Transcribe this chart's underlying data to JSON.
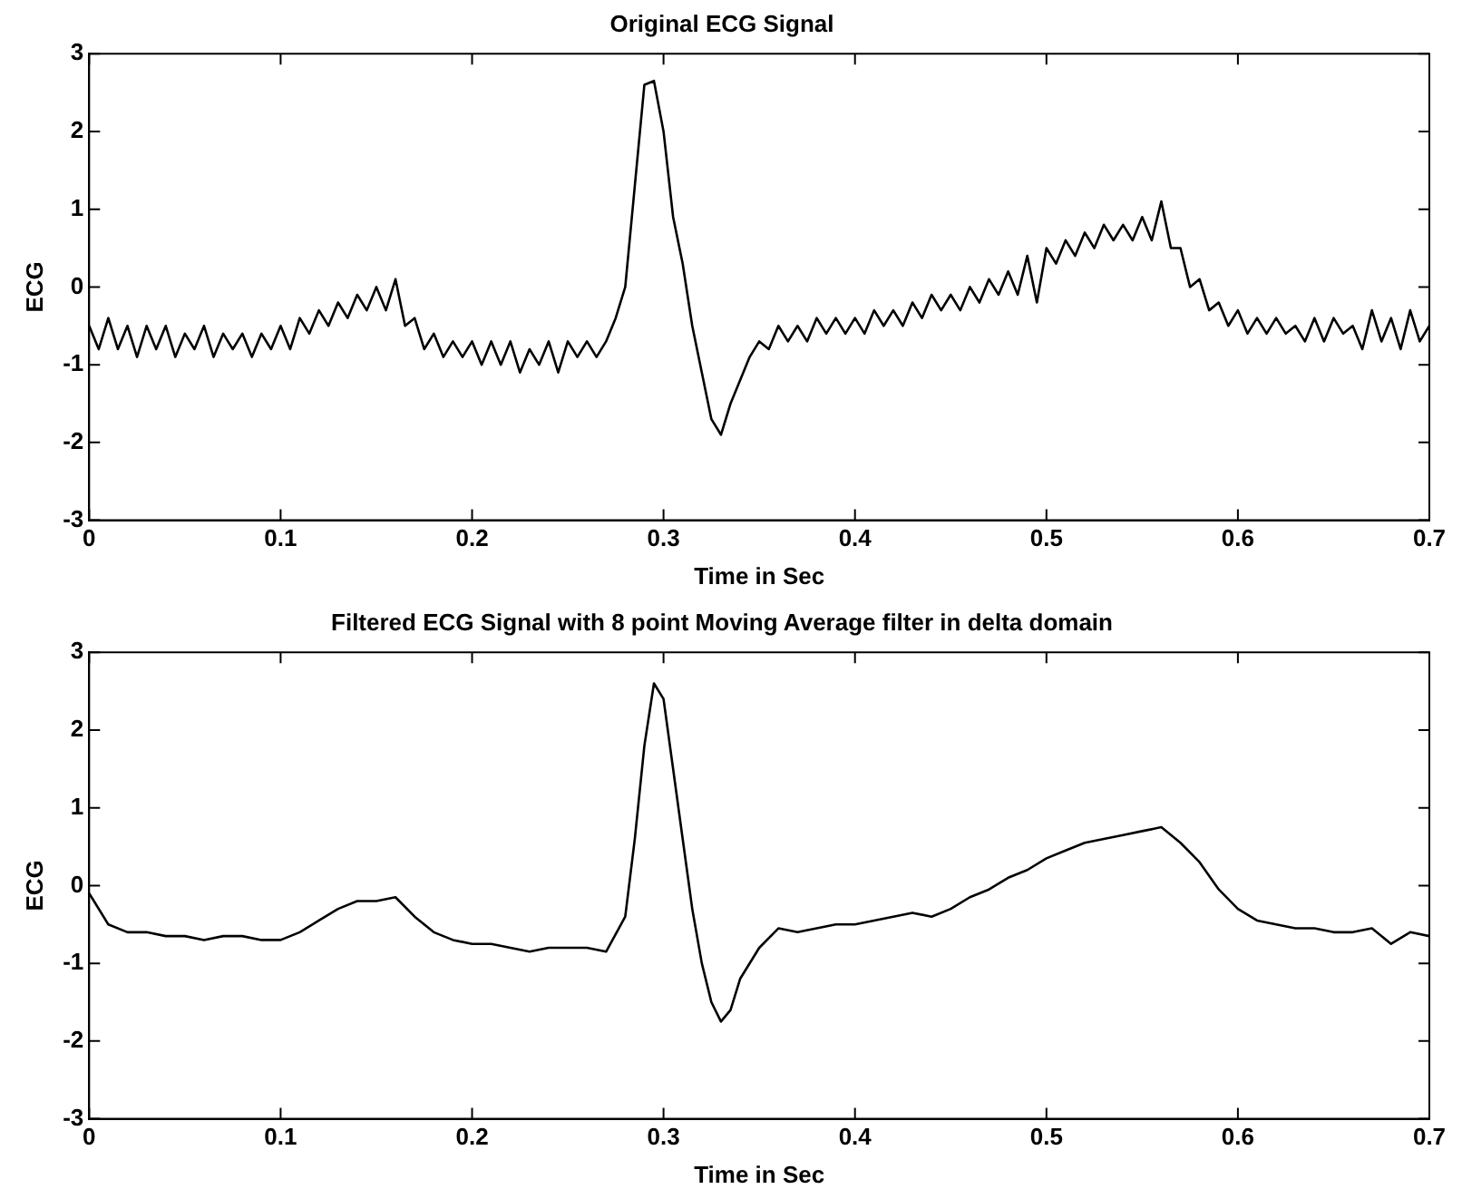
{
  "chart_data": [
    {
      "type": "line",
      "title": "Original ECG Signal",
      "xlabel": "Time in Sec",
      "ylabel": "ECG",
      "xlim": [
        0,
        0.7
      ],
      "xticks": [
        0,
        0.1,
        0.2,
        0.3,
        0.4,
        0.5,
        0.6,
        0.7
      ],
      "ylim": [
        -3,
        3
      ],
      "yticks": [
        -3,
        -2,
        -1,
        0,
        1,
        2,
        3
      ],
      "grid": false,
      "legend": false,
      "marker": "none",
      "line_style": "solid",
      "x": [
        0,
        0.005,
        0.01,
        0.015,
        0.02,
        0.025,
        0.03,
        0.035,
        0.04,
        0.045,
        0.05,
        0.055,
        0.06,
        0.065,
        0.07,
        0.075,
        0.08,
        0.085,
        0.09,
        0.095,
        0.1,
        0.105,
        0.11,
        0.115,
        0.12,
        0.125,
        0.13,
        0.135,
        0.14,
        0.145,
        0.15,
        0.155,
        0.16,
        0.165,
        0.17,
        0.175,
        0.18,
        0.185,
        0.19,
        0.195,
        0.2,
        0.205,
        0.21,
        0.215,
        0.22,
        0.225,
        0.23,
        0.235,
        0.24,
        0.245,
        0.25,
        0.255,
        0.26,
        0.265,
        0.27,
        0.275,
        0.28,
        0.285,
        0.29,
        0.295,
        0.3,
        0.305,
        0.31,
        0.315,
        0.32,
        0.325,
        0.33,
        0.335,
        0.34,
        0.345,
        0.35,
        0.355,
        0.36,
        0.365,
        0.37,
        0.375,
        0.38,
        0.385,
        0.39,
        0.395,
        0.4,
        0.405,
        0.41,
        0.415,
        0.42,
        0.425,
        0.43,
        0.435,
        0.44,
        0.445,
        0.45,
        0.455,
        0.46,
        0.465,
        0.47,
        0.475,
        0.48,
        0.485,
        0.49,
        0.495,
        0.5,
        0.505,
        0.51,
        0.515,
        0.52,
        0.525,
        0.53,
        0.535,
        0.54,
        0.545,
        0.55,
        0.555,
        0.56,
        0.565,
        0.57,
        0.575,
        0.58,
        0.585,
        0.59,
        0.595,
        0.6,
        0.605,
        0.61,
        0.615,
        0.62,
        0.625,
        0.63,
        0.635,
        0.64,
        0.645,
        0.65,
        0.655,
        0.66,
        0.665,
        0.67,
        0.675,
        0.68,
        0.685,
        0.69,
        0.695,
        0.7
      ],
      "series": [
        {
          "color": "#000000",
          "values": [
            -0.5,
            -0.8,
            -0.4,
            -0.8,
            -0.5,
            -0.9,
            -0.5,
            -0.8,
            -0.5,
            -0.9,
            -0.6,
            -0.8,
            -0.5,
            -0.9,
            -0.6,
            -0.8,
            -0.6,
            -0.9,
            -0.6,
            -0.8,
            -0.5,
            -0.8,
            -0.4,
            -0.6,
            -0.3,
            -0.5,
            -0.2,
            -0.4,
            -0.1,
            -0.3,
            0.0,
            -0.3,
            0.1,
            -0.5,
            -0.4,
            -0.8,
            -0.6,
            -0.9,
            -0.7,
            -0.9,
            -0.7,
            -1.0,
            -0.7,
            -1.0,
            -0.7,
            -1.1,
            -0.8,
            -1.0,
            -0.7,
            -1.1,
            -0.7,
            -0.9,
            -0.7,
            -0.9,
            -0.7,
            -0.4,
            0.0,
            1.3,
            2.6,
            2.65,
            2.0,
            0.9,
            0.3,
            -0.5,
            -1.1,
            -1.7,
            -1.9,
            -1.5,
            -1.2,
            -0.9,
            -0.7,
            -0.8,
            -0.5,
            -0.7,
            -0.5,
            -0.7,
            -0.4,
            -0.6,
            -0.4,
            -0.6,
            -0.4,
            -0.6,
            -0.3,
            -0.5,
            -0.3,
            -0.5,
            -0.2,
            -0.4,
            -0.1,
            -0.3,
            -0.1,
            -0.3,
            0.0,
            -0.2,
            0.1,
            -0.1,
            0.2,
            -0.1,
            0.4,
            -0.2,
            0.5,
            0.3,
            0.6,
            0.4,
            0.7,
            0.5,
            0.8,
            0.6,
            0.8,
            0.6,
            0.9,
            0.6,
            1.1,
            0.5,
            0.5,
            0.0,
            0.1,
            -0.3,
            -0.2,
            -0.5,
            -0.3,
            -0.6,
            -0.4,
            -0.6,
            -0.4,
            -0.6,
            -0.5,
            -0.7,
            -0.4,
            -0.7,
            -0.4,
            -0.6,
            -0.5,
            -0.8,
            -0.3,
            -0.7,
            -0.4,
            -0.8,
            -0.3,
            -0.7,
            -0.5
          ]
        }
      ]
    },
    {
      "type": "line",
      "title": "Filtered ECG Signal with 8 point Moving Average filter in delta domain",
      "xlabel": "Time in Sec",
      "ylabel": "ECG",
      "xlim": [
        0,
        0.7
      ],
      "xticks": [
        0,
        0.1,
        0.2,
        0.3,
        0.4,
        0.5,
        0.6,
        0.7
      ],
      "ylim": [
        -3,
        3
      ],
      "yticks": [
        -3,
        -2,
        -1,
        0,
        1,
        2,
        3
      ],
      "grid": false,
      "legend": false,
      "marker": "none",
      "line_style": "solid",
      "x": [
        0,
        0.01,
        0.02,
        0.03,
        0.04,
        0.05,
        0.06,
        0.07,
        0.08,
        0.09,
        0.1,
        0.11,
        0.12,
        0.13,
        0.14,
        0.15,
        0.16,
        0.17,
        0.18,
        0.19,
        0.2,
        0.21,
        0.22,
        0.23,
        0.24,
        0.25,
        0.26,
        0.27,
        0.28,
        0.285,
        0.29,
        0.295,
        0.3,
        0.305,
        0.31,
        0.315,
        0.32,
        0.325,
        0.33,
        0.335,
        0.34,
        0.35,
        0.36,
        0.37,
        0.38,
        0.39,
        0.4,
        0.41,
        0.42,
        0.43,
        0.44,
        0.45,
        0.46,
        0.47,
        0.48,
        0.49,
        0.5,
        0.51,
        0.52,
        0.53,
        0.54,
        0.55,
        0.56,
        0.57,
        0.58,
        0.59,
        0.6,
        0.61,
        0.62,
        0.63,
        0.64,
        0.65,
        0.66,
        0.67,
        0.68,
        0.69,
        0.7
      ],
      "series": [
        {
          "color": "#000000",
          "values": [
            -0.1,
            -0.5,
            -0.6,
            -0.6,
            -0.65,
            -0.65,
            -0.7,
            -0.65,
            -0.65,
            -0.7,
            -0.7,
            -0.6,
            -0.45,
            -0.3,
            -0.2,
            -0.2,
            -0.15,
            -0.4,
            -0.6,
            -0.7,
            -0.75,
            -0.75,
            -0.8,
            -0.85,
            -0.8,
            -0.8,
            -0.8,
            -0.85,
            -0.4,
            0.6,
            1.8,
            2.6,
            2.4,
            1.5,
            0.6,
            -0.3,
            -1.0,
            -1.5,
            -1.75,
            -1.6,
            -1.2,
            -0.8,
            -0.55,
            -0.6,
            -0.55,
            -0.5,
            -0.5,
            -0.45,
            -0.4,
            -0.35,
            -0.4,
            -0.3,
            -0.15,
            -0.05,
            0.1,
            0.2,
            0.35,
            0.45,
            0.55,
            0.6,
            0.65,
            0.7,
            0.75,
            0.55,
            0.3,
            -0.05,
            -0.3,
            -0.45,
            -0.5,
            -0.55,
            -0.55,
            -0.6,
            -0.6,
            -0.55,
            -0.75,
            -0.6,
            -0.65
          ]
        }
      ]
    }
  ]
}
